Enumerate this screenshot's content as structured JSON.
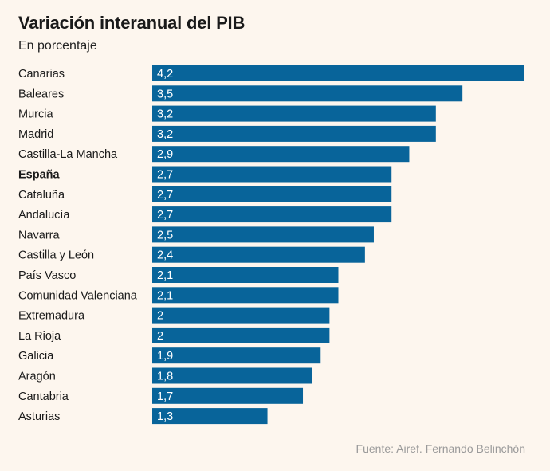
{
  "header": {
    "title": "Variación interanual del PIB",
    "subtitle": "En porcentaje"
  },
  "footer": {
    "source": "Fuente: Airef. Fernando Belinchón"
  },
  "colors": {
    "bar": "#08649a",
    "bar_label": "#ffffff",
    "background": "#fdf6ee"
  },
  "chart_data": {
    "type": "bar",
    "orientation": "horizontal",
    "title": "Variación interanual del PIB",
    "subtitle": "En porcentaje",
    "categories": [
      "Canarias",
      "Baleares",
      "Murcia",
      "Madrid",
      "Castilla-La Mancha",
      "España",
      "Cataluña",
      "Andalucía",
      "Navarra",
      "Castilla y León",
      "País Vasco",
      "Comunidad Valenciana",
      "Extremadura",
      "La Rioja",
      "Galicia",
      "Aragón",
      "Cantabria",
      "Asturias"
    ],
    "values": [
      4.2,
      3.5,
      3.2,
      3.2,
      2.9,
      2.7,
      2.7,
      2.7,
      2.5,
      2.4,
      2.1,
      2.1,
      2,
      2,
      1.9,
      1.8,
      1.7,
      1.3
    ],
    "value_labels": [
      "4,2",
      "3,5",
      "3,2",
      "3,2",
      "2,9",
      "2,7",
      "2,7",
      "2,7",
      "2,5",
      "2,4",
      "2,1",
      "2,1",
      "2",
      "2",
      "1,9",
      "1,8",
      "1,7",
      "1,3"
    ],
    "highlighted": [
      "España"
    ],
    "xlim": [
      0,
      4.2
    ],
    "grid": false,
    "legend": "none"
  }
}
